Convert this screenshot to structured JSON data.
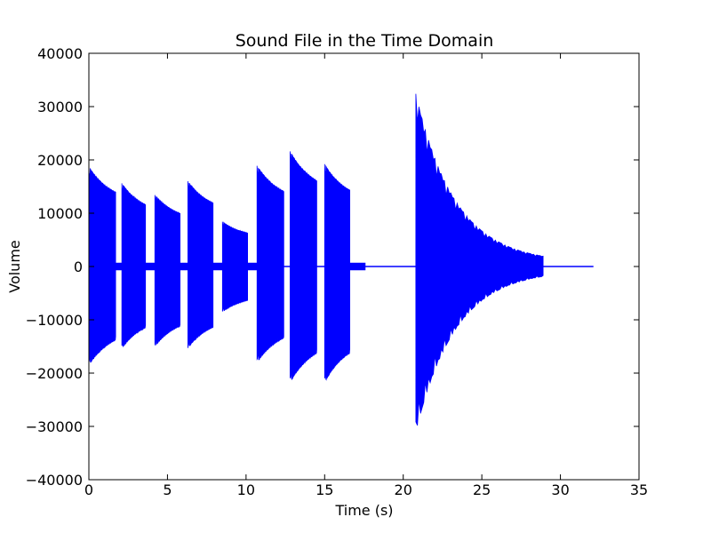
{
  "chart_data": {
    "type": "area",
    "title": "Sound File in the Time Domain",
    "xlabel": "Time (s)",
    "ylabel": "Volume",
    "xlim": [
      0,
      35
    ],
    "ylim": [
      -40000,
      40000
    ],
    "x_ticks": [
      "0",
      "5",
      "10",
      "15",
      "20",
      "25",
      "30",
      "35"
    ],
    "y_ticks": [
      "40000",
      "30000",
      "20000",
      "10000",
      "0",
      "−10000",
      "−20000",
      "−30000",
      "−40000"
    ],
    "grid": false,
    "color": "#0000ff",
    "series": [
      {
        "values": [
          {
            "t_start": 0.0,
            "t_end": 1.7,
            "peak_pos": 18700,
            "peak_neg": -18500
          },
          {
            "t_start": 2.1,
            "t_end": 3.6,
            "peak_pos": 15600,
            "peak_neg": -15400
          },
          {
            "t_start": 4.2,
            "t_end": 5.8,
            "peak_pos": 13400,
            "peak_neg": -15000
          },
          {
            "t_start": 6.3,
            "t_end": 7.9,
            "peak_pos": 16000,
            "peak_neg": -15300
          },
          {
            "t_start": 8.5,
            "t_end": 10.1,
            "peak_pos": 8400,
            "peak_neg": -8500
          },
          {
            "t_start": 10.7,
            "t_end": 12.4,
            "peak_pos": 18900,
            "peak_neg": -18000
          },
          {
            "t_start": 12.8,
            "t_end": 14.5,
            "peak_pos": 21600,
            "peak_neg": -21800
          },
          {
            "t_start": 15.0,
            "t_end": 16.6,
            "peak_pos": 19200,
            "peak_neg": -21800
          },
          {
            "t_start": 20.8,
            "t_end": 28.9,
            "peak_pos": 32400,
            "peak_neg": -31000
          }
        ]
      }
    ]
  }
}
